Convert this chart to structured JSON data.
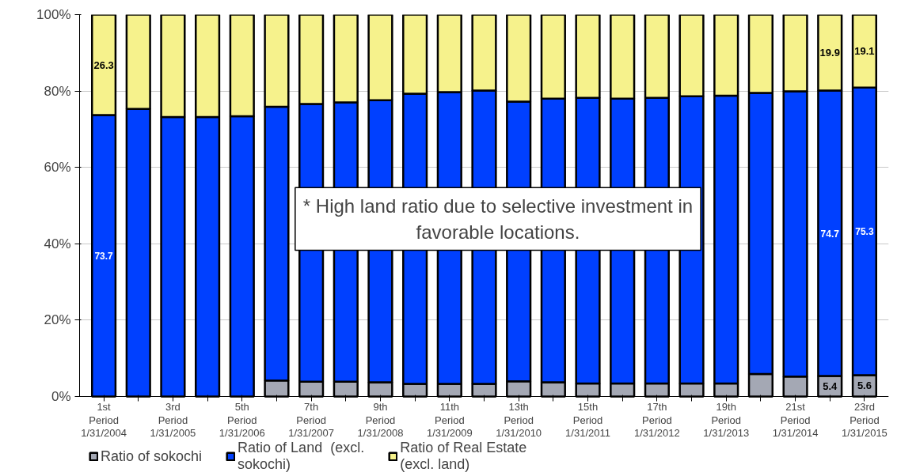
{
  "chart_data": {
    "type": "bar",
    "stacked": true,
    "categories": [
      "1st\nPeriod\n1/31/2004",
      null,
      "3rd\nPeriod\n1/31/2005",
      null,
      "5th\nPeriod\n1/31/2006",
      null,
      "7th\nPeriod\n1/31/2007",
      null,
      "9th\nPeriod\n1/31/2008",
      null,
      "11th\nPeriod\n1/31/2009",
      null,
      "13th\nPeriod\n1/31/2010",
      null,
      "15th\nPeriod\n1/31/2011",
      null,
      "17th\nPeriod\n1/31/2012",
      null,
      "19th\nPeriod\n1/31/2013",
      null,
      "21st\nPeriod\n1/31/2014",
      null,
      "23rd\nPeriod\n1/31/2015"
    ],
    "series": [
      {
        "name": "Ratio of sokochi",
        "color": "#a4a8b4",
        "values": [
          0,
          0,
          0,
          0,
          0,
          4.2,
          3.9,
          3.9,
          3.7,
          3.3,
          3.3,
          3.3,
          4.0,
          3.7,
          3.4,
          3.4,
          3.4,
          3.4,
          3.4,
          5.9,
          5.2,
          5.4,
          5.6
        ],
        "value_labels": [
          null,
          null,
          null,
          null,
          null,
          null,
          null,
          null,
          null,
          null,
          null,
          null,
          null,
          null,
          null,
          null,
          null,
          null,
          null,
          null,
          null,
          "5.4",
          "5.6"
        ]
      },
      {
        "name": "Ratio of Land  (excl.\nsokochi)",
        "color": "#0040ff",
        "values": [
          73.7,
          75.3,
          73.2,
          73.2,
          73.4,
          71.7,
          72.7,
          73.1,
          73.9,
          76.0,
          76.4,
          76.8,
          73.2,
          74.3,
          74.8,
          74.6,
          74.8,
          75.2,
          75.4,
          73.6,
          74.7,
          74.7,
          75.3
        ],
        "value_labels": [
          "73.7",
          null,
          null,
          null,
          null,
          null,
          null,
          null,
          null,
          null,
          null,
          null,
          null,
          null,
          null,
          null,
          null,
          null,
          null,
          null,
          null,
          "74.7",
          "75.3"
        ]
      },
      {
        "name": "Ratio of Real Estate\n(excl. land)",
        "color": "#f6f28c",
        "values": [
          26.3,
          24.7,
          26.8,
          26.8,
          26.6,
          24.1,
          23.4,
          23.0,
          22.4,
          20.7,
          20.3,
          19.9,
          22.8,
          22.0,
          21.8,
          22.0,
          21.8,
          21.4,
          21.2,
          20.5,
          20.1,
          19.9,
          19.1
        ],
        "value_labels": [
          "26.3",
          null,
          null,
          null,
          null,
          null,
          null,
          null,
          null,
          null,
          null,
          null,
          null,
          null,
          null,
          null,
          null,
          null,
          null,
          null,
          null,
          "19.9",
          "19.1"
        ]
      }
    ],
    "ylim": [
      0,
      100
    ],
    "yticks": [
      {
        "value": 0,
        "label": "0%"
      },
      {
        "value": 20,
        "label": "20%"
      },
      {
        "value": 40,
        "label": "40%"
      },
      {
        "value": 60,
        "label": "60%"
      },
      {
        "value": 80,
        "label": "80%"
      },
      {
        "value": 100,
        "label": "100%"
      }
    ],
    "grid": "y",
    "legend": "bottom",
    "annotations": [
      "* High land ratio due to selective investment in favorable locations."
    ]
  }
}
